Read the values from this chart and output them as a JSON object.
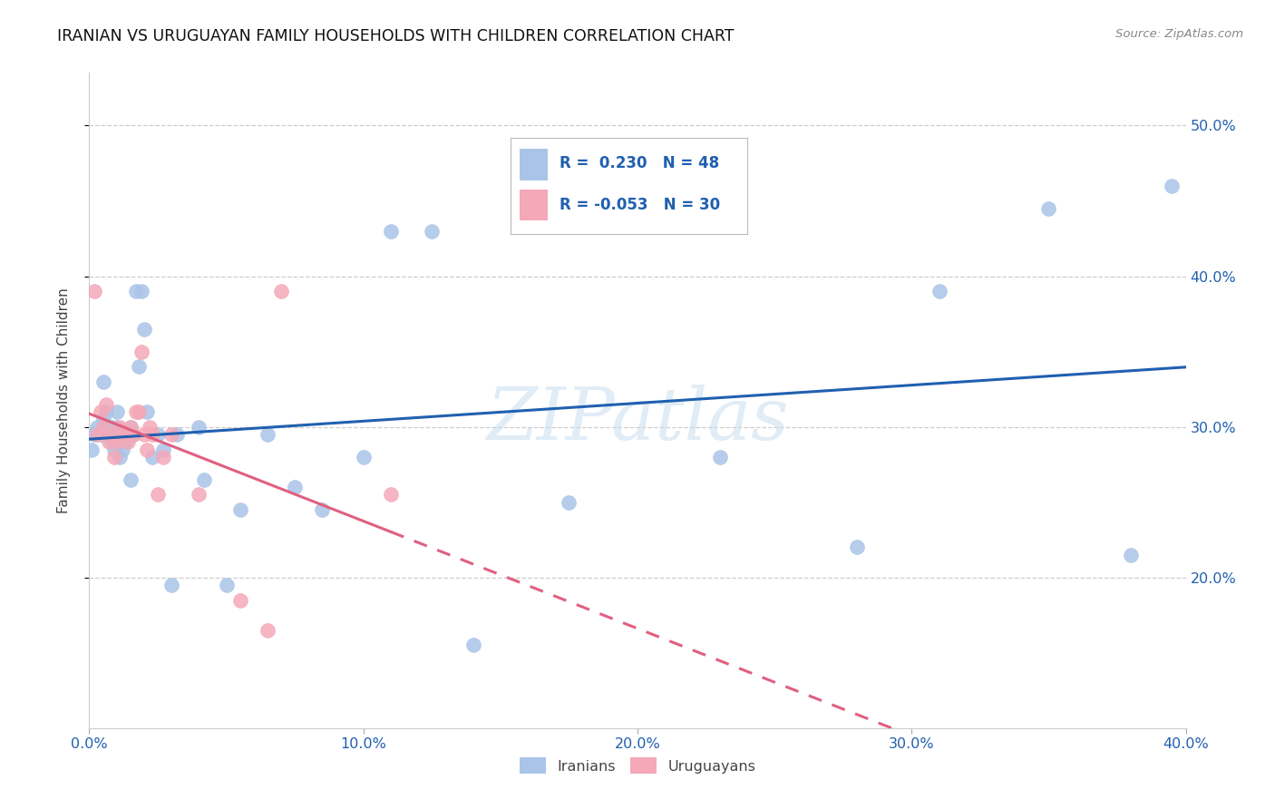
{
  "title": "IRANIAN VS URUGUAYAN FAMILY HOUSEHOLDS WITH CHILDREN CORRELATION CHART",
  "source": "Source: ZipAtlas.com",
  "xmin": 0.0,
  "xmax": 0.4,
  "ymin": 0.1,
  "ymax": 0.535,
  "iranian_R": 0.23,
  "iranian_N": 48,
  "uruguayan_R": -0.053,
  "uruguayan_N": 30,
  "iranian_color": "#aac4e8",
  "uruguayan_color": "#f4a8b8",
  "iranian_line_color": "#2060b0",
  "uruguayan_line_color": "#e06080",
  "watermark": "ZIPatlas",
  "iranians_x": [
    0.001,
    0.002,
    0.003,
    0.004,
    0.005,
    0.005,
    0.006,
    0.007,
    0.008,
    0.008,
    0.009,
    0.01,
    0.01,
    0.011,
    0.012,
    0.013,
    0.014,
    0.015,
    0.015,
    0.016,
    0.017,
    0.018,
    0.019,
    0.02,
    0.021,
    0.023,
    0.025,
    0.027,
    0.03,
    0.032,
    0.04,
    0.042,
    0.05,
    0.055,
    0.065,
    0.075,
    0.085,
    0.1,
    0.11,
    0.125,
    0.14,
    0.175,
    0.23,
    0.28,
    0.31,
    0.35,
    0.38,
    0.395
  ],
  "iranians_y": [
    0.285,
    0.295,
    0.3,
    0.295,
    0.33,
    0.305,
    0.31,
    0.295,
    0.3,
    0.29,
    0.285,
    0.3,
    0.31,
    0.28,
    0.285,
    0.29,
    0.295,
    0.265,
    0.3,
    0.295,
    0.39,
    0.34,
    0.39,
    0.365,
    0.31,
    0.28,
    0.295,
    0.285,
    0.195,
    0.295,
    0.3,
    0.265,
    0.195,
    0.245,
    0.295,
    0.26,
    0.245,
    0.28,
    0.43,
    0.43,
    0.155,
    0.25,
    0.28,
    0.22,
    0.39,
    0.445,
    0.215,
    0.46
  ],
  "uruguayans_x": [
    0.002,
    0.003,
    0.004,
    0.005,
    0.006,
    0.007,
    0.008,
    0.009,
    0.01,
    0.011,
    0.012,
    0.013,
    0.014,
    0.015,
    0.016,
    0.017,
    0.018,
    0.019,
    0.02,
    0.021,
    0.022,
    0.023,
    0.025,
    0.027,
    0.03,
    0.04,
    0.055,
    0.065,
    0.07,
    0.11
  ],
  "uruguayans_y": [
    0.39,
    0.295,
    0.31,
    0.3,
    0.315,
    0.29,
    0.295,
    0.28,
    0.29,
    0.3,
    0.295,
    0.295,
    0.29,
    0.3,
    0.295,
    0.31,
    0.31,
    0.35,
    0.295,
    0.285,
    0.3,
    0.295,
    0.255,
    0.28,
    0.295,
    0.255,
    0.185,
    0.165,
    0.39,
    0.255
  ],
  "background_color": "#ffffff",
  "grid_color": "#c8c8c8"
}
